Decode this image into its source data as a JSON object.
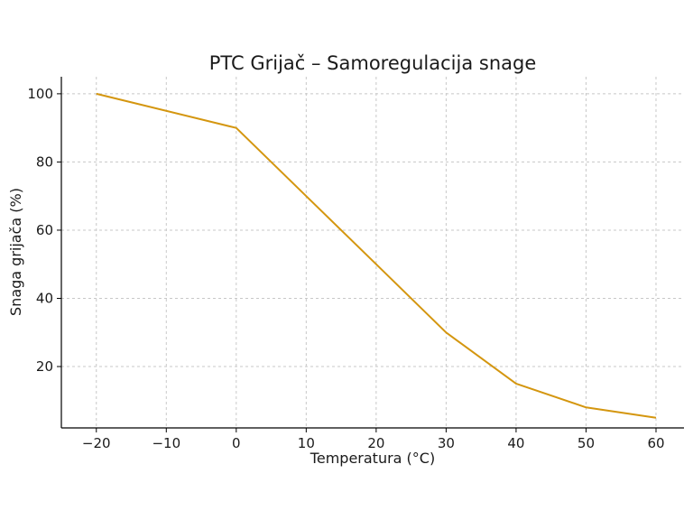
{
  "chart_data": {
    "type": "line",
    "title": "PTC Grijač – Samoregulacija snage",
    "xlabel": "Temperatura (°C)",
    "ylabel": "Snaga grijača (%)",
    "xlim": [
      -25,
      64
    ],
    "ylim": [
      2,
      105
    ],
    "x_ticks": [
      -20,
      -10,
      0,
      10,
      20,
      30,
      40,
      50,
      60
    ],
    "x_tick_labels": [
      "−20",
      "−10",
      "0",
      "10",
      "20",
      "30",
      "40",
      "50",
      "60"
    ],
    "y_ticks": [
      20,
      40,
      60,
      80,
      100
    ],
    "y_tick_labels": [
      "20",
      "40",
      "60",
      "80",
      "100"
    ],
    "grid": true,
    "series": [
      {
        "color": "#d4960f",
        "x": [
          -20,
          0,
          10,
          20,
          30,
          40,
          50,
          60
        ],
        "y": [
          100,
          90,
          70,
          50,
          30,
          15,
          8,
          5
        ]
      }
    ]
  }
}
